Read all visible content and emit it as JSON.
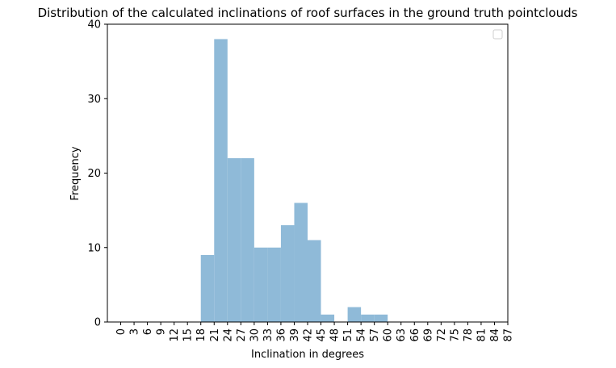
{
  "chart_data": {
    "type": "bar",
    "title": "Distribution of the calculated inclinations of roof surfaces in the ground truth pointclouds",
    "xlabel": "Inclination in degrees",
    "ylabel": "Frequency",
    "xlim": [
      -3,
      87
    ],
    "ylim": [
      0,
      40
    ],
    "yticks": [
      0,
      10,
      20,
      30,
      40
    ],
    "xticks": [
      "0",
      "3",
      "6",
      "9",
      "12",
      "15",
      "18",
      "21",
      "24",
      "27",
      "30",
      "33",
      "36",
      "39",
      "42",
      "45",
      "48",
      "51",
      "54",
      "57",
      "60",
      "63",
      "66",
      "69",
      "72",
      "75",
      "78",
      "81",
      "84",
      "87"
    ],
    "bin_width": 3,
    "bins": [
      {
        "start": 18,
        "value": 9
      },
      {
        "start": 21,
        "value": 38
      },
      {
        "start": 24,
        "value": 22
      },
      {
        "start": 27,
        "value": 22
      },
      {
        "start": 30,
        "value": 10
      },
      {
        "start": 33,
        "value": 10
      },
      {
        "start": 36,
        "value": 13
      },
      {
        "start": 39,
        "value": 16
      },
      {
        "start": 42,
        "value": 11
      },
      {
        "start": 45,
        "value": 1
      },
      {
        "start": 48,
        "value": 0
      },
      {
        "start": 51,
        "value": 2
      },
      {
        "start": 54,
        "value": 1
      },
      {
        "start": 57,
        "value": 1
      }
    ],
    "bar_color": "#8fbad8",
    "grid": false,
    "legend": {
      "placement": "top-right",
      "entries": []
    }
  }
}
